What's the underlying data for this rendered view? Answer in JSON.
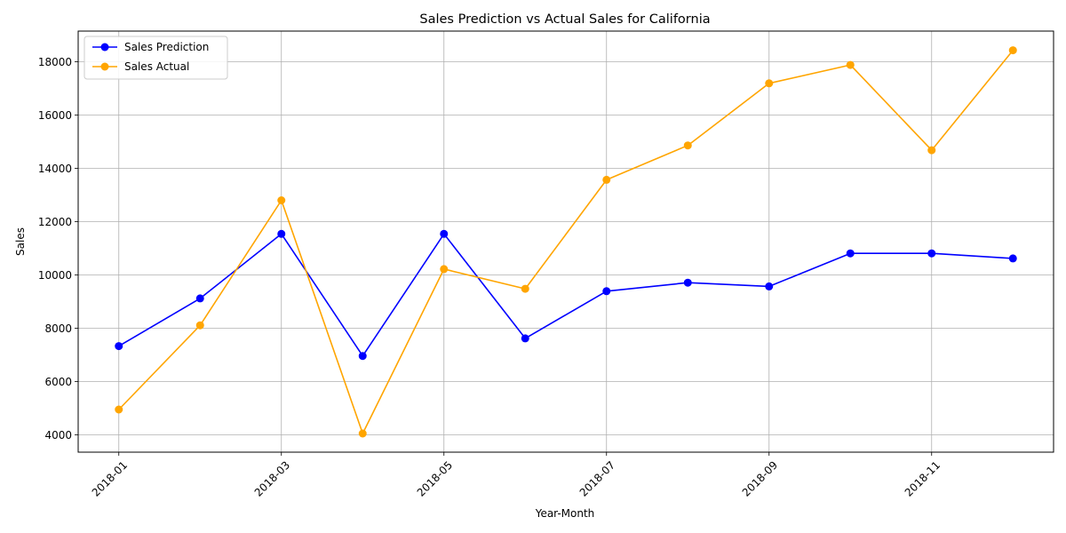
{
  "chart_data": {
    "type": "line",
    "title": "Sales Prediction vs Actual Sales for California",
    "xlabel": "Year-Month",
    "ylabel": "Sales",
    "categories": [
      "2018-01",
      "2018-02",
      "2018-03",
      "2018-04",
      "2018-05",
      "2018-06",
      "2018-07",
      "2018-08",
      "2018-09",
      "2018-10",
      "2018-11",
      "2018-12"
    ],
    "x_tick_labels": [
      "2018-01",
      "2018-03",
      "2018-05",
      "2018-07",
      "2018-09",
      "2018-11"
    ],
    "y_ticks": [
      4000,
      6000,
      8000,
      10000,
      12000,
      14000,
      16000,
      18000
    ],
    "ylim": [
      3350,
      19150
    ],
    "grid": true,
    "legend_position": "top-left",
    "series": [
      {
        "name": "Sales Prediction",
        "color": "#0000ff",
        "values": [
          7330,
          9120,
          11540,
          6960,
          11540,
          7620,
          9390,
          9710,
          9570,
          10810,
          10810,
          10620
        ]
      },
      {
        "name": "Sales Actual",
        "color": "#ffa500",
        "values": [
          4950,
          8110,
          12800,
          4050,
          10220,
          9480,
          13570,
          14860,
          17190,
          17880,
          14680,
          18430
        ]
      }
    ]
  }
}
